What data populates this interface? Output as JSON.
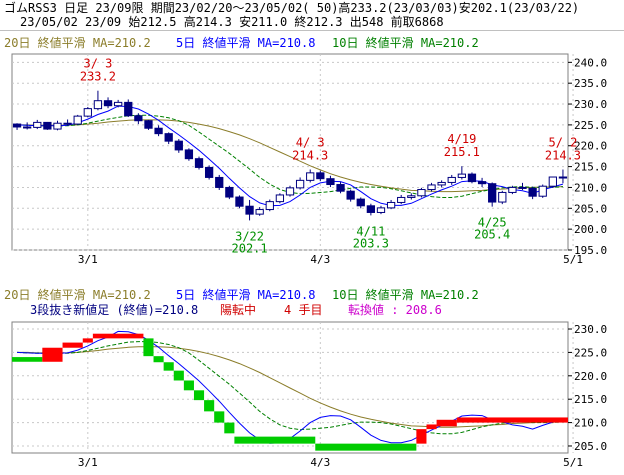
{
  "header": {
    "line1": "ゴムRSS3 日足 23/09限 期間23/02/20～23/05/02( 50)高233.2(23/03/03)安202.1(23/03/22)",
    "line2": "23/05/02 23/09 始212.5 高214.3 安211.0 終212.3 出548 前取6868"
  },
  "colors": {
    "bg": "#ffffff",
    "grid": "#c8c8c8",
    "up": "#ffffff",
    "down": "#000080",
    "ma20": "#8b7d2a",
    "ma5": "#0000ff",
    "ma10": "#008000",
    "hl_red": "#d00000",
    "hl_green": "#009000",
    "brick_up": "#ff0000",
    "brick_down": "#00cc00",
    "magenta": "#cc00cc"
  },
  "chart_data": [
    {
      "type": "candlestick",
      "legend": {
        "ma20": "20日 終値平滑 MA=210.2",
        "ma5": "5日 終値平滑 MA=210.8",
        "ma10": "10日 終値平滑 MA=210.2"
      },
      "ylim": [
        195,
        242
      ],
      "yticks": [
        195,
        200,
        205,
        210,
        215,
        220,
        225,
        230,
        235,
        240
      ],
      "ytick_labels": [
        "195.0",
        "200.0",
        "205.0",
        "210.0",
        "215.0",
        "220.0",
        "225.0",
        "230.0",
        "235.0",
        "240.0"
      ],
      "xticks": [
        {
          "i": 7,
          "label": "3/1"
        },
        {
          "i": 30,
          "label": "4/3"
        },
        {
          "i": 55,
          "label": "5/1"
        }
      ],
      "candles": [
        [
          225.2,
          225.4,
          223.8,
          224.5
        ],
        [
          224.5,
          225.6,
          223.9,
          224.4
        ],
        [
          224.4,
          226.2,
          224.0,
          225.6
        ],
        [
          225.6,
          225.7,
          223.8,
          224.0
        ],
        [
          224.0,
          226.0,
          223.7,
          225.4
        ],
        [
          225.4,
          226.3,
          224.8,
          225.2
        ],
        [
          225.2,
          227.4,
          225.0,
          227.1
        ],
        [
          227.1,
          229.3,
          226.8,
          228.9
        ],
        [
          228.9,
          233.2,
          228.5,
          230.8
        ],
        [
          230.8,
          231.6,
          229.0,
          229.6
        ],
        [
          229.6,
          231.0,
          229.2,
          230.4
        ],
        [
          230.4,
          231.1,
          226.9,
          227.2
        ],
        [
          227.2,
          227.8,
          225.2,
          226.0
        ],
        [
          226.0,
          226.2,
          223.8,
          224.2
        ],
        [
          224.2,
          224.9,
          222.3,
          222.9
        ],
        [
          222.9,
          223.2,
          220.4,
          221.1
        ],
        [
          221.1,
          221.6,
          218.3,
          219.0
        ],
        [
          219.0,
          219.4,
          216.4,
          216.9
        ],
        [
          216.9,
          217.4,
          214.3,
          214.8
        ],
        [
          214.8,
          215.3,
          211.9,
          212.4
        ],
        [
          212.4,
          213.0,
          209.4,
          210.0
        ],
        [
          210.0,
          210.4,
          207.2,
          207.7
        ],
        [
          207.7,
          208.1,
          205.0,
          205.5
        ],
        [
          205.5,
          207.0,
          202.1,
          203.6
        ],
        [
          203.6,
          205.3,
          203.2,
          204.7
        ],
        [
          204.7,
          207.1,
          204.3,
          206.6
        ],
        [
          206.6,
          208.6,
          206.2,
          208.2
        ],
        [
          208.2,
          210.4,
          207.8,
          209.9
        ],
        [
          209.9,
          212.4,
          209.5,
          211.7
        ],
        [
          211.7,
          214.3,
          211.2,
          213.5
        ],
        [
          213.5,
          214.0,
          211.5,
          212.1
        ],
        [
          212.1,
          212.8,
          210.1,
          210.7
        ],
        [
          210.7,
          211.3,
          208.6,
          209.1
        ],
        [
          209.1,
          209.5,
          206.6,
          207.2
        ],
        [
          207.2,
          207.6,
          205.0,
          205.6
        ],
        [
          205.6,
          206.1,
          203.3,
          204.0
        ],
        [
          204.0,
          205.6,
          203.6,
          205.1
        ],
        [
          205.1,
          207.0,
          204.8,
          206.4
        ],
        [
          206.4,
          208.2,
          206.0,
          207.6
        ],
        [
          207.6,
          208.6,
          207.1,
          208.0
        ],
        [
          208.0,
          209.9,
          207.6,
          209.5
        ],
        [
          209.5,
          211.1,
          209.0,
          210.6
        ],
        [
          210.6,
          211.7,
          210.0,
          211.2
        ],
        [
          211.2,
          213.0,
          210.6,
          212.4
        ],
        [
          212.4,
          215.1,
          211.9,
          213.2
        ],
        [
          213.2,
          213.6,
          211.0,
          211.4
        ],
        [
          211.4,
          212.3,
          210.1,
          210.9
        ],
        [
          210.9,
          211.2,
          205.4,
          206.5
        ],
        [
          206.5,
          209.2,
          206.0,
          208.8
        ],
        [
          208.8,
          210.4,
          208.4,
          210.0
        ],
        [
          210.0,
          211.1,
          209.4,
          209.8
        ],
        [
          209.8,
          210.2,
          207.2,
          207.9
        ],
        [
          207.9,
          210.7,
          207.5,
          210.3
        ],
        [
          210.3,
          212.6,
          210.0,
          212.5
        ],
        [
          212.5,
          214.3,
          211.0,
          212.3
        ]
      ],
      "ma5": [
        225.0,
        224.9,
        224.8,
        224.8,
        224.8,
        224.9,
        225.5,
        226.4,
        227.5,
        228.3,
        229.5,
        229.4,
        228.8,
        227.6,
        226.1,
        224.3,
        222.6,
        220.8,
        218.9,
        216.8,
        214.6,
        212.2,
        209.9,
        207.8,
        206.3,
        205.6,
        205.7,
        206.6,
        208.2,
        210.0,
        211.1,
        211.5,
        211.4,
        210.6,
        209.0,
        207.3,
        206.2,
        205.7,
        205.7,
        206.2,
        207.3,
        208.4,
        209.4,
        210.3,
        211.4,
        211.6,
        211.5,
        210.6,
        210.2,
        209.5,
        209.2,
        208.6,
        209.4,
        210.1,
        210.8
      ],
      "ma10": [
        225.0,
        224.9,
        224.8,
        224.8,
        224.8,
        224.8,
        225.0,
        225.4,
        225.9,
        226.4,
        226.8,
        227.2,
        227.3,
        227.3,
        227.1,
        226.7,
        226.0,
        224.9,
        223.3,
        221.6,
        219.9,
        218.2,
        216.3,
        214.4,
        212.4,
        210.8,
        209.5,
        208.8,
        208.5,
        208.6,
        208.8,
        209.0,
        209.4,
        209.8,
        210.1,
        210.1,
        210.0,
        209.7,
        209.2,
        208.7,
        208.2,
        207.8,
        207.6,
        207.6,
        207.9,
        208.5,
        209.1,
        209.5,
        209.9,
        210.1,
        210.2,
        210.0,
        210.0,
        210.0,
        210.2
      ],
      "ma20": [
        225.0,
        225.0,
        224.9,
        224.9,
        224.9,
        224.9,
        225.0,
        225.2,
        225.4,
        225.7,
        225.9,
        226.1,
        226.2,
        226.2,
        226.2,
        226.1,
        225.9,
        225.6,
        225.2,
        224.7,
        224.1,
        223.4,
        222.6,
        221.7,
        220.7,
        219.6,
        218.5,
        217.4,
        216.3,
        215.2,
        214.2,
        213.3,
        212.5,
        211.8,
        211.2,
        210.7,
        210.3,
        209.9,
        209.6,
        209.3,
        209.2,
        209.1,
        209.0,
        209.0,
        209.1,
        209.2,
        209.3,
        209.5,
        209.6,
        209.8,
        209.9,
        210.0,
        210.1,
        210.1,
        210.2
      ],
      "annotations": [
        {
          "i": 8,
          "date": "3/ 3",
          "value": "233.2",
          "color": "red",
          "pos": "above"
        },
        {
          "i": 23,
          "date": "3/22",
          "value": "202.1",
          "color": "green",
          "pos": "below"
        },
        {
          "i": 29,
          "date": "4/ 3",
          "value": "214.3",
          "color": "red",
          "pos": "above"
        },
        {
          "i": 35,
          "date": "4/11",
          "value": "203.3",
          "color": "green",
          "pos": "below"
        },
        {
          "i": 44,
          "date": "4/19",
          "value": "215.1",
          "color": "red",
          "pos": "above"
        },
        {
          "i": 47,
          "date": "4/25",
          "value": "205.4",
          "color": "green",
          "pos": "below"
        },
        {
          "i": 54,
          "date": "5/ 2",
          "value": "214.3",
          "color": "red",
          "pos": "above"
        }
      ]
    },
    {
      "type": "three-line-break",
      "legend": {
        "ma20": "20日 終値平滑 MA=210.2",
        "ma5": "5日 終値平滑 MA=210.8",
        "ma10": "10日 終値平滑 MA=210.2"
      },
      "info": {
        "main": "3段抜き新値足 (終値)=210.8",
        "state": "陽転中",
        "count": "4 手目",
        "reversal": "転換値 : 208.6"
      },
      "ylim": [
        203.5,
        231.5
      ],
      "yticks": [
        205,
        210,
        215,
        220,
        225,
        230
      ],
      "ytick_labels": [
        "205.0",
        "210.0",
        "215.0",
        "220.0",
        "225.0",
        "230.0"
      ],
      "xticks": [
        {
          "i": 7,
          "label": "3/1"
        },
        {
          "i": 30,
          "label": "4/3"
        },
        {
          "i": 55,
          "label": "5/1"
        }
      ],
      "bricks": [
        {
          "i0": 0,
          "i1": 3,
          "lo": 223.0,
          "hi": 224.0,
          "dir": "down"
        },
        {
          "i0": 3,
          "i1": 5,
          "lo": 223.0,
          "hi": 226.0,
          "dir": "up"
        },
        {
          "i0": 5,
          "i1": 7,
          "lo": 226.0,
          "hi": 227.1,
          "dir": "up"
        },
        {
          "i0": 7,
          "i1": 8,
          "lo": 227.1,
          "hi": 228.0,
          "dir": "up"
        },
        {
          "i0": 8,
          "i1": 13,
          "lo": 228.0,
          "hi": 229.0,
          "dir": "up"
        },
        {
          "i0": 13,
          "i1": 14,
          "lo": 224.2,
          "hi": 228.0,
          "dir": "down"
        },
        {
          "i0": 14,
          "i1": 15,
          "lo": 222.9,
          "hi": 224.2,
          "dir": "down"
        },
        {
          "i0": 15,
          "i1": 16,
          "lo": 221.1,
          "hi": 222.9,
          "dir": "down"
        },
        {
          "i0": 16,
          "i1": 17,
          "lo": 219.0,
          "hi": 221.1,
          "dir": "down"
        },
        {
          "i0": 17,
          "i1": 18,
          "lo": 216.9,
          "hi": 219.0,
          "dir": "down"
        },
        {
          "i0": 18,
          "i1": 19,
          "lo": 214.8,
          "hi": 216.9,
          "dir": "down"
        },
        {
          "i0": 19,
          "i1": 20,
          "lo": 212.4,
          "hi": 214.8,
          "dir": "down"
        },
        {
          "i0": 20,
          "i1": 21,
          "lo": 210.0,
          "hi": 212.4,
          "dir": "down"
        },
        {
          "i0": 21,
          "i1": 22,
          "lo": 207.7,
          "hi": 210.0,
          "dir": "down"
        },
        {
          "i0": 22,
          "i1": 30,
          "lo": 205.5,
          "hi": 207.0,
          "dir": "down"
        },
        {
          "i0": 30,
          "i1": 40,
          "lo": 204.0,
          "hi": 205.5,
          "dir": "down"
        },
        {
          "i0": 40,
          "i1": 41,
          "lo": 205.5,
          "hi": 208.6,
          "dir": "up"
        },
        {
          "i0": 41,
          "i1": 42,
          "lo": 208.6,
          "hi": 209.6,
          "dir": "up"
        },
        {
          "i0": 42,
          "i1": 44,
          "lo": 209.2,
          "hi": 210.6,
          "dir": "up"
        },
        {
          "i0": 44,
          "i1": 55,
          "lo": 210.0,
          "hi": 211.1,
          "dir": "up"
        }
      ]
    }
  ]
}
